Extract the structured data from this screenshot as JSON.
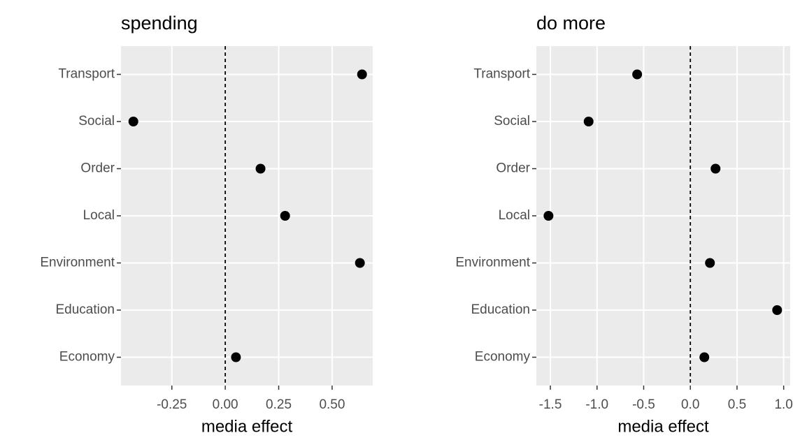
{
  "chart_data": [
    {
      "type": "dot",
      "title": "spending",
      "x_label": "media effect",
      "categories": [
        "Economy",
        "Education",
        "Environment",
        "Local",
        "Order",
        "Social",
        "Transport"
      ],
      "values": [
        0.05,
        null,
        0.63,
        0.28,
        0.165,
        -0.43,
        0.64
      ],
      "color": "#000000",
      "reference_line": 0,
      "xlim": [
        -0.488,
        0.69
      ],
      "xticks": [
        -0.25,
        {
          "value": 0,
          "label": "0.00"
        },
        0.25,
        {
          "value": 0.5,
          "label": "0.50"
        }
      ],
      "grid": true
    },
    {
      "type": "dot",
      "title": "do more",
      "x_label": "media effect",
      "categories": [
        "Economy",
        "Education",
        "Environment",
        "Local",
        "Order",
        "Social",
        "Transport"
      ],
      "values": [
        0.15,
        0.93,
        0.21,
        -1.52,
        0.27,
        -1.09,
        -0.57
      ],
      "color": "#000000",
      "reference_line": 0,
      "xlim": [
        -1.65,
        1.07
      ],
      "xticks": [
        -1.5,
        {
          "value": -1,
          "label": "-1.0"
        },
        -0.5,
        {
          "value": 0,
          "label": "0.0"
        },
        0.5,
        {
          "value": 1,
          "label": "1.0"
        }
      ],
      "grid": true
    }
  ]
}
